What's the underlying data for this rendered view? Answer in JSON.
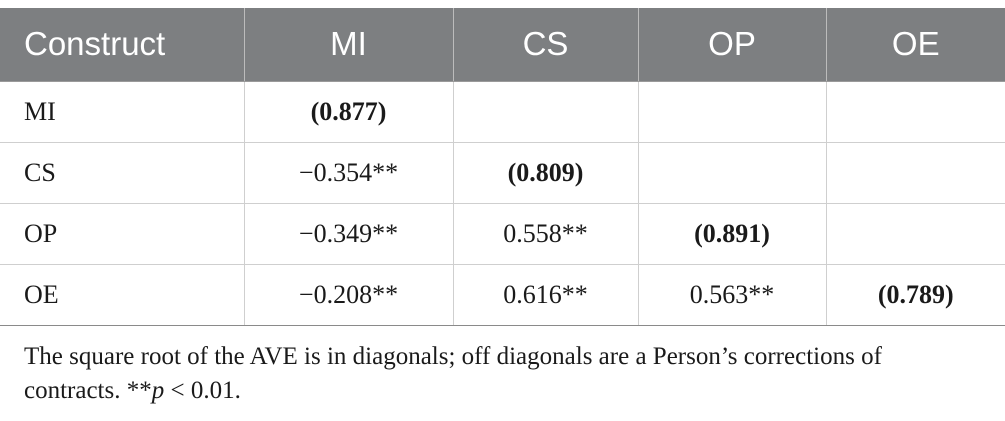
{
  "table": {
    "headers": [
      "Construct",
      "MI",
      "CS",
      "OP",
      "OE"
    ],
    "rows": [
      {
        "construct": "MI",
        "cells": [
          "(0.877)",
          "",
          "",
          ""
        ]
      },
      {
        "construct": "CS",
        "cells": [
          "−0.354**",
          "(0.809)",
          "",
          ""
        ]
      },
      {
        "construct": "OP",
        "cells": [
          "−0.349**",
          "0.558**",
          "(0.891)",
          ""
        ]
      },
      {
        "construct": "OE",
        "cells": [
          "−0.208**",
          "0.616**",
          "0.563**",
          "(0.789)"
        ]
      }
    ]
  },
  "footnote": {
    "text": "The square root of the AVE is in diagonals; off diagonals are a Person’s corrections of contracts. **",
    "p_symbol": "p",
    "p_condition": " < 0.01."
  },
  "colors": {
    "header_background": "#7d7f81",
    "header_text": "#ffffff",
    "grid_lines": "#cfcfcf"
  }
}
